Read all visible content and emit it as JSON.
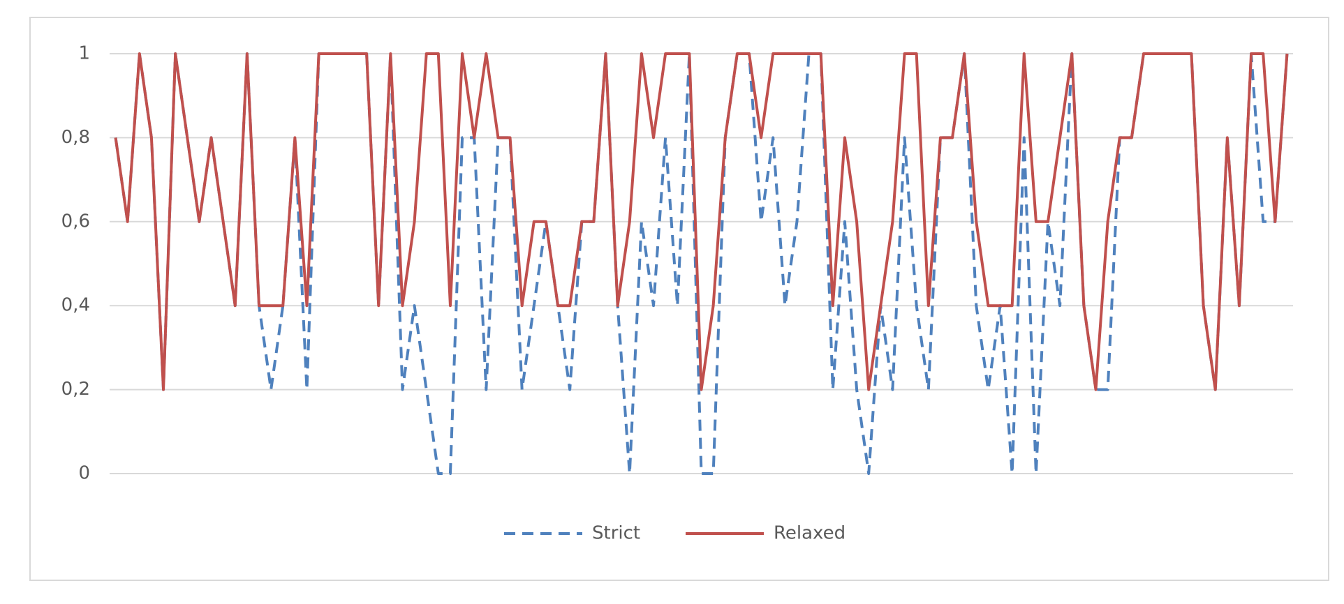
{
  "chart_data": {
    "type": "line",
    "categories": [
      null,
      null,
      null,
      null,
      null,
      null,
      null,
      null,
      null,
      null,
      null,
      null,
      null,
      null,
      null,
      null,
      null,
      null,
      null,
      null,
      null,
      null,
      null,
      null,
      null,
      null,
      null,
      null,
      null,
      null,
      null,
      null,
      null,
      null,
      null,
      null,
      null,
      null,
      null,
      null,
      null,
      null,
      null,
      null,
      null,
      null,
      null,
      null,
      null,
      null,
      null,
      null,
      null,
      null,
      null,
      null,
      null,
      null,
      null,
      null,
      null,
      null,
      null,
      null,
      null,
      null,
      null,
      null,
      null,
      null,
      null,
      null,
      null,
      null,
      null,
      null,
      null,
      null,
      null,
      null,
      null,
      null,
      null,
      null,
      null,
      null,
      null,
      null,
      null,
      null,
      null,
      null,
      null,
      null,
      null,
      null,
      null,
      null,
      null
    ],
    "series": [
      {
        "name": "Strict",
        "color": "#4f81bd",
        "dashed": true,
        "values": [
          0.8,
          0.6,
          1,
          0.8,
          0.2,
          1,
          0.8,
          0.6,
          0.8,
          0.6,
          0.4,
          1,
          0.4,
          0.2,
          0.4,
          0.8,
          0.2,
          1,
          1,
          1,
          1,
          1,
          0.4,
          1,
          0.2,
          0.4,
          0.2,
          0,
          0,
          0.8,
          0.8,
          0.2,
          0.8,
          0.8,
          0.2,
          0.4,
          0.6,
          0.4,
          0.2,
          0.6,
          0.6,
          1,
          0.4,
          0,
          0.6,
          0.4,
          0.8,
          0.4,
          1,
          0,
          0,
          0.8,
          1,
          1,
          0.6,
          0.8,
          0.4,
          0.6,
          1,
          1,
          0.2,
          0.6,
          0.2,
          0,
          0.4,
          0.2,
          0.8,
          0.4,
          0.2,
          0.8,
          0.8,
          1,
          0.4,
          0.2,
          0.4,
          0,
          0.8,
          0,
          0.6,
          0.4,
          1,
          0.4,
          0.2,
          0.2,
          0.8,
          0.8,
          1,
          1,
          1,
          1,
          1,
          0.4,
          0.2,
          0.8,
          0.4,
          1,
          0.6,
          0.6,
          1
        ]
      },
      {
        "name": "Relaxed",
        "color": "#c0504d",
        "dashed": false,
        "values": [
          0.8,
          0.6,
          1,
          0.8,
          0.2,
          1,
          0.8,
          0.6,
          0.8,
          0.6,
          0.4,
          1,
          0.4,
          0.4,
          0.4,
          0.8,
          0.4,
          1,
          1,
          1,
          1,
          1,
          0.4,
          1,
          0.4,
          0.6,
          1,
          1,
          0.4,
          1,
          0.8,
          1,
          0.8,
          0.8,
          0.4,
          0.6,
          0.6,
          0.4,
          0.4,
          0.6,
          0.6,
          1,
          0.4,
          0.6,
          1,
          0.8,
          1,
          1,
          1,
          0.2,
          0.4,
          0.8,
          1,
          1,
          0.8,
          1,
          1,
          1,
          1,
          1,
          0.4,
          0.8,
          0.6,
          0.2,
          0.4,
          0.6,
          1,
          1,
          0.4,
          0.8,
          0.8,
          1,
          0.6,
          0.4,
          0.4,
          0.4,
          1,
          0.6,
          0.6,
          0.8,
          1,
          0.4,
          0.2,
          0.6,
          0.8,
          0.8,
          1,
          1,
          1,
          1,
          1,
          0.4,
          0.2,
          0.8,
          0.4,
          1,
          1,
          0.6,
          1
        ]
      }
    ],
    "ylim": [
      0,
      1
    ],
    "yticks": [
      0,
      {
        "value": 0.2,
        "label": "0,2"
      },
      {
        "value": 0.4,
        "label": "0,4"
      },
      {
        "value": 0.6,
        "label": "0,6"
      },
      {
        "value": 0.8,
        "label": "0,8"
      },
      1
    ],
    "grid": true,
    "legend": "bottom"
  }
}
